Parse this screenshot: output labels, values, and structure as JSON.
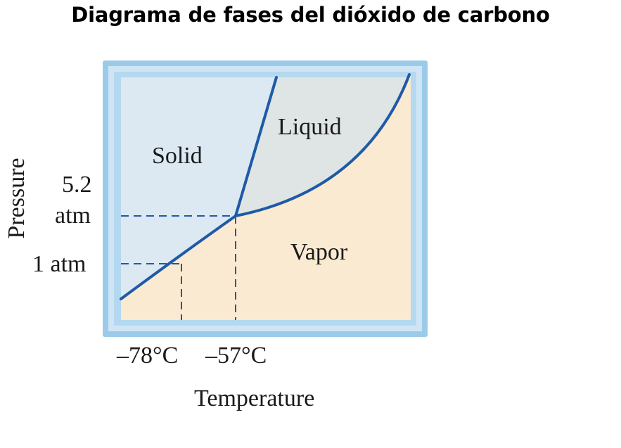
{
  "title": "Diagrama de fases del dióxido de carbono",
  "axes": {
    "y_label": "Pressure",
    "x_label": "Temperature",
    "y_ticks": [
      "5.2",
      "atm",
      "1 atm"
    ],
    "x_ticks": [
      "–78°C",
      "–57°C"
    ]
  },
  "regions": {
    "solid": "Solid",
    "liquid": "Liquid",
    "vapor": "Vapor"
  },
  "colors": {
    "solid_fill": "#dce9f3",
    "liquid_fill": "#dfe5e4",
    "vapor_fill": "#fbead2",
    "curve": "#1f5aa6",
    "frame": "#a9cfe8"
  }
}
